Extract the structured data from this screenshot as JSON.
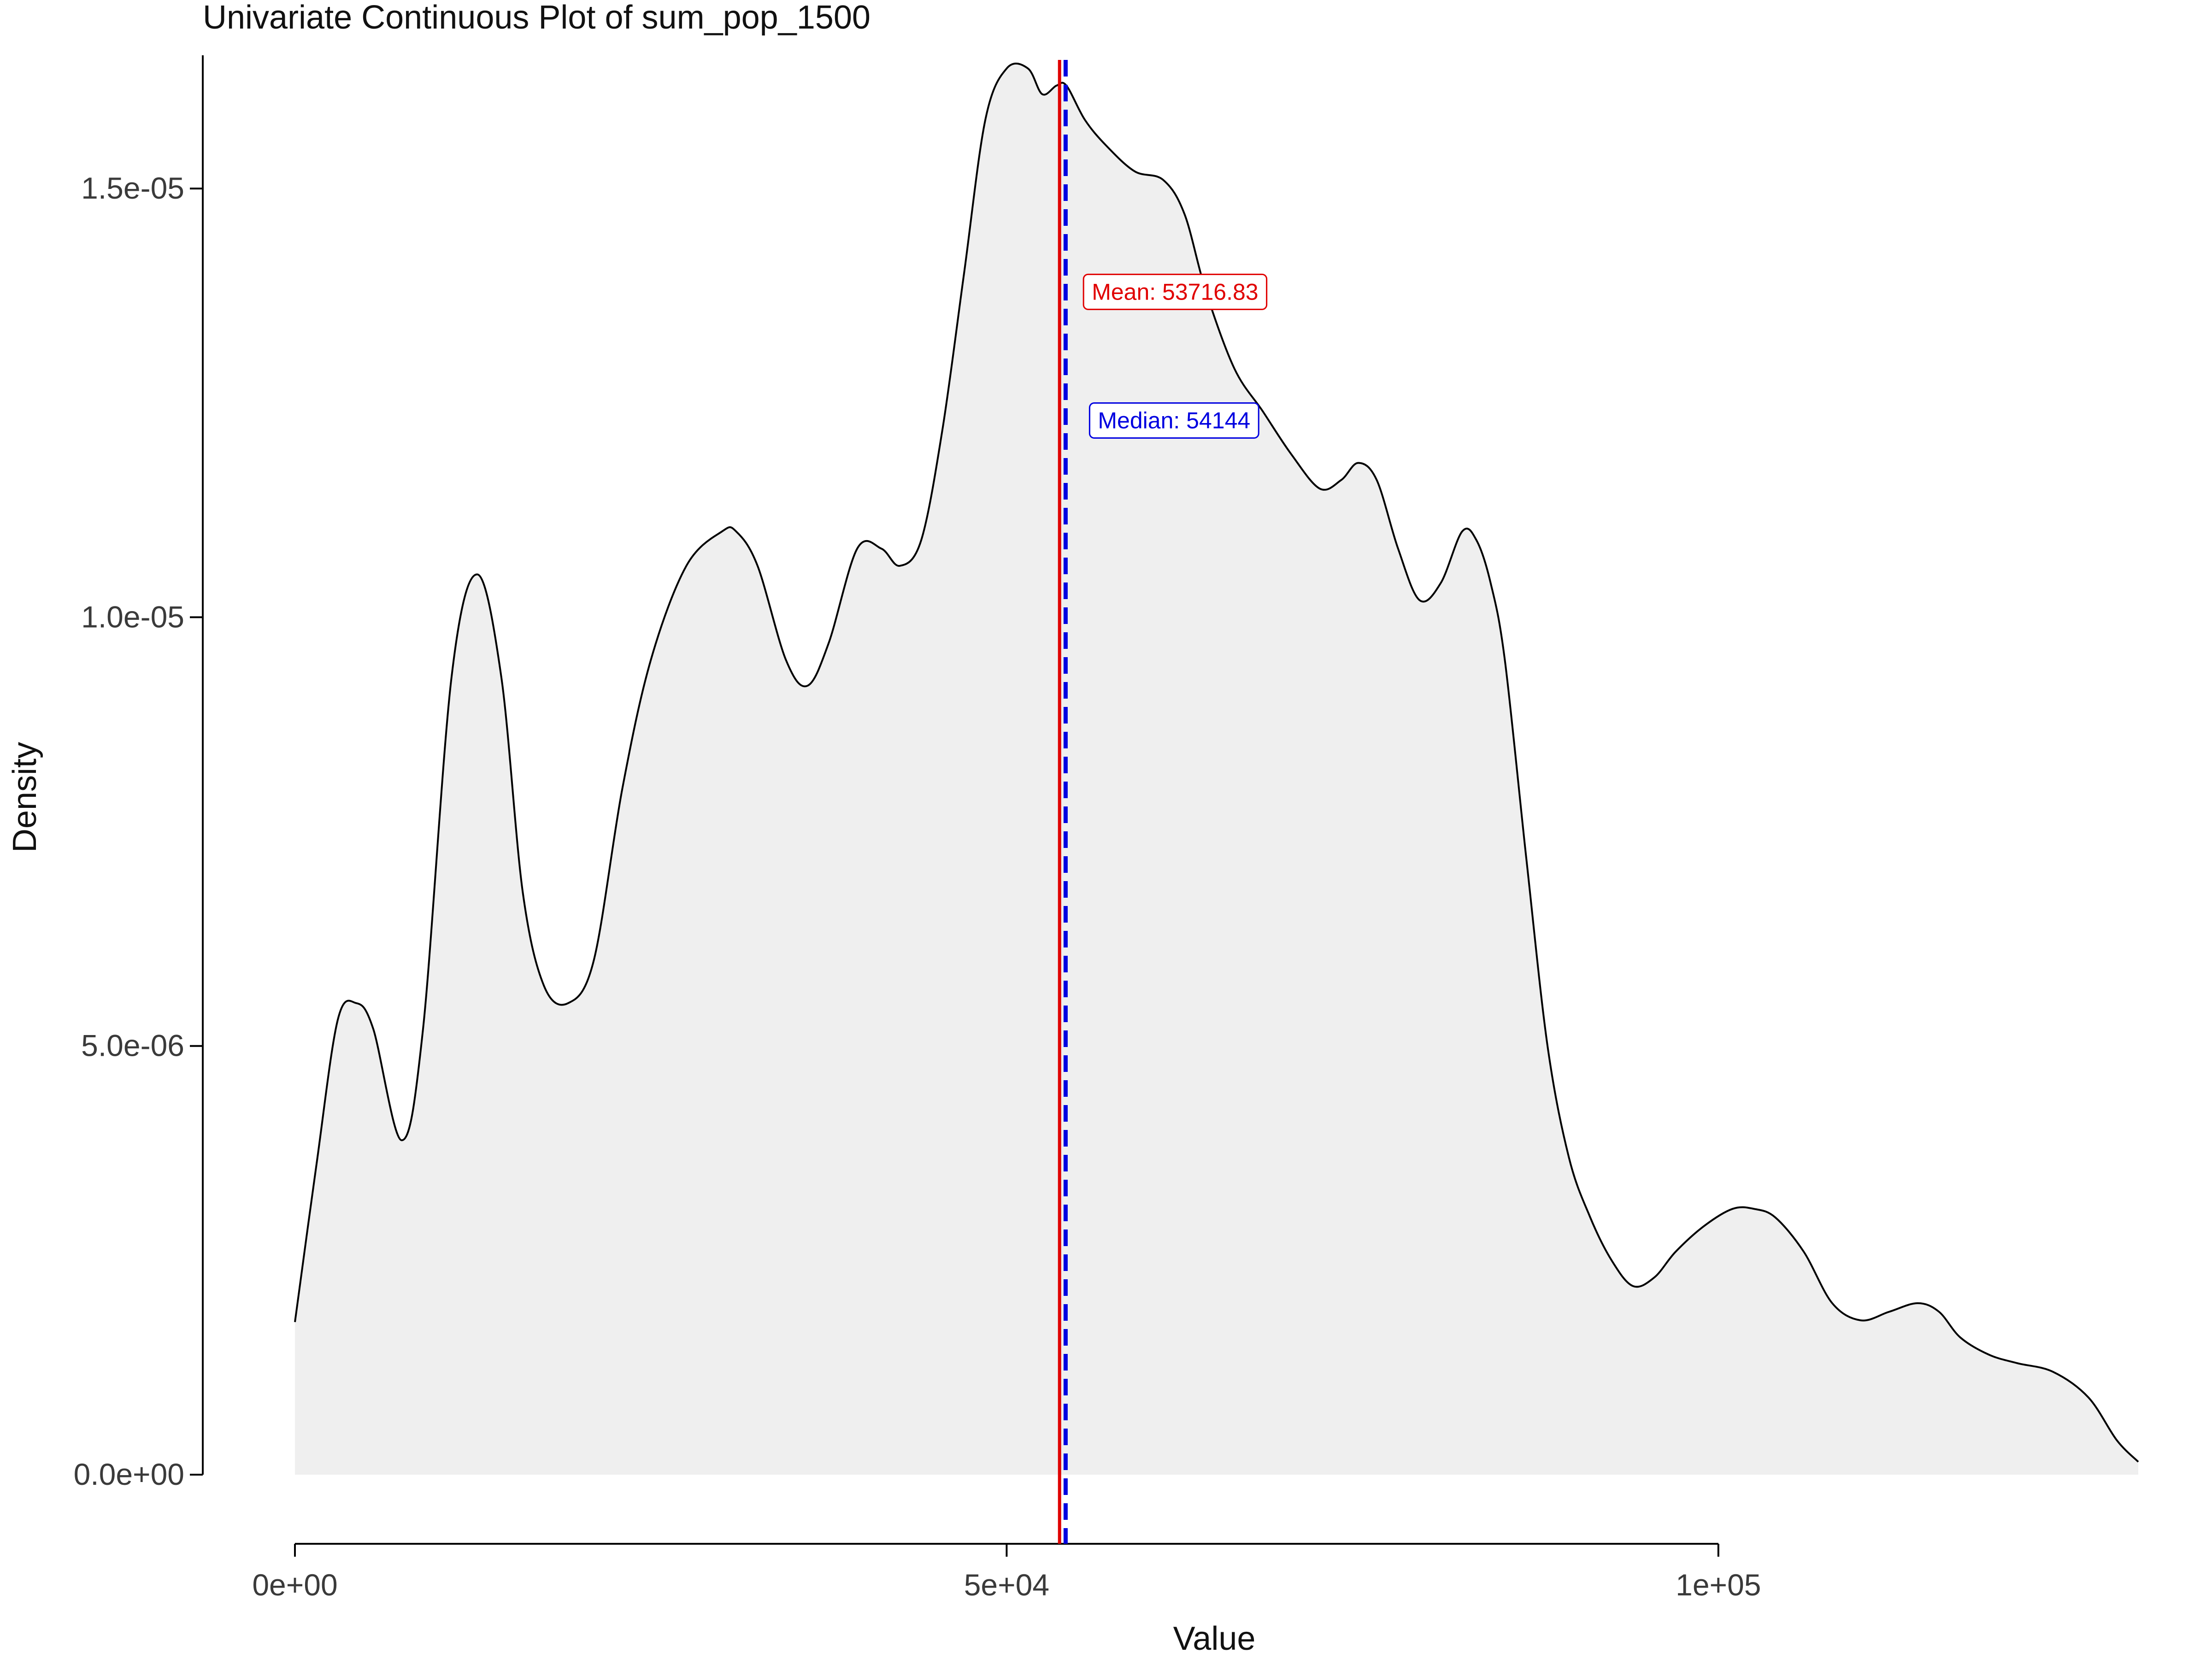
{
  "chart_data": {
    "type": "area",
    "title": "Univariate Continuous Plot of sum_pop_1500",
    "xlabel": "Value",
    "ylabel": "Density",
    "xlim": [
      0,
      129500
    ],
    "ylim": [
      0,
      1.65e-05
    ],
    "x_ticks": [
      {
        "value": 0,
        "label": "0e+00"
      },
      {
        "value": 50000,
        "label": "5e+04"
      },
      {
        "value": 100000,
        "label": "1e+05"
      }
    ],
    "y_ticks": [
      {
        "value": 0,
        "label": "0.0e+00"
      },
      {
        "value": 5e-06,
        "label": "5.0e-06"
      },
      {
        "value": 1e-05,
        "label": "1.0e-05"
      },
      {
        "value": 1.5e-05,
        "label": "1.5e-05"
      }
    ],
    "grid": false,
    "legend": "none",
    "fill_color": "#efefef",
    "line_color": "#000000",
    "series": [
      {
        "x": [
          0,
          1500,
          3000,
          4300,
          5500,
          7500,
          9000,
          11000,
          12800,
          14500,
          16000,
          17500,
          19200,
          21000,
          23000,
          25000,
          27500,
          30000,
          31000,
          32500,
          34500,
          36000,
          37500,
          39500,
          41200,
          42500,
          44000,
          45500,
          47000,
          48500,
          50000,
          51500,
          52500,
          53500,
          54200,
          55500,
          57000,
          59000,
          61000,
          62500,
          64000,
          66000,
          68000,
          70000,
          72000,
          73500,
          74700,
          76000,
          77500,
          79000,
          80500,
          82000,
          83000,
          84000,
          85000,
          86500,
          88000,
          89500,
          91000,
          92500,
          94000,
          95500,
          97000,
          99000,
          101000,
          102500,
          104000,
          106000,
          108000,
          110000,
          112000,
          114000,
          115500,
          117000,
          119000,
          121000,
          123500,
          126000,
          128000,
          129500
        ],
        "y": [
          1.78e-06,
          3.6e-06,
          5.3e-06,
          5.5e-06,
          5.2e-06,
          3.9e-06,
          5.2e-06,
          9.3e-06,
          1.05e-05,
          9.3e-06,
          6.8e-06,
          5.7e-06,
          5.5e-06,
          6e-06,
          8e-06,
          9.5e-06,
          1.06e-05,
          1.1e-05,
          1.1e-05,
          1.06e-05,
          9.5e-06,
          9.2e-06,
          9.7e-06,
          1.08e-05,
          1.08e-05,
          1.06e-05,
          1.09e-05,
          1.22e-05,
          1.4e-05,
          1.58e-05,
          1.64e-05,
          1.64e-05,
          1.61e-05,
          1.62e-05,
          1.62e-05,
          1.58e-05,
          1.55e-05,
          1.52e-05,
          1.51e-05,
          1.47e-05,
          1.38e-05,
          1.29e-05,
          1.24e-05,
          1.19e-05,
          1.15e-05,
          1.16e-05,
          1.18e-05,
          1.16e-05,
          1.08e-05,
          1.02e-05,
          1.04e-05,
          1.1e-05,
          1.09e-05,
          1.04e-05,
          9.5e-06,
          7.2e-06,
          5e-06,
          3.7e-06,
          3e-06,
          2.5e-06,
          2.2e-06,
          2.3e-06,
          2.6e-06,
          2.9e-06,
          3.1e-06,
          3.1e-06,
          3e-06,
          2.6e-06,
          2e-06,
          1.8e-06,
          1.9e-06,
          2e-06,
          1.9e-06,
          1.6e-06,
          1.4e-06,
          1.3e-06,
          1.2e-06,
          9e-07,
          4e-07,
          1.5e-07
        ]
      }
    ],
    "reference_lines": [
      {
        "name": "mean",
        "value": 53716.83,
        "color": "#e00000",
        "style": "solid",
        "label": "Mean: 53716.83",
        "label_density": 1.38e-05
      },
      {
        "name": "median",
        "value": 54144,
        "color": "#0000e0",
        "style": "dashed",
        "label": "Median: 54144",
        "label_density": 1.23e-05
      }
    ]
  }
}
